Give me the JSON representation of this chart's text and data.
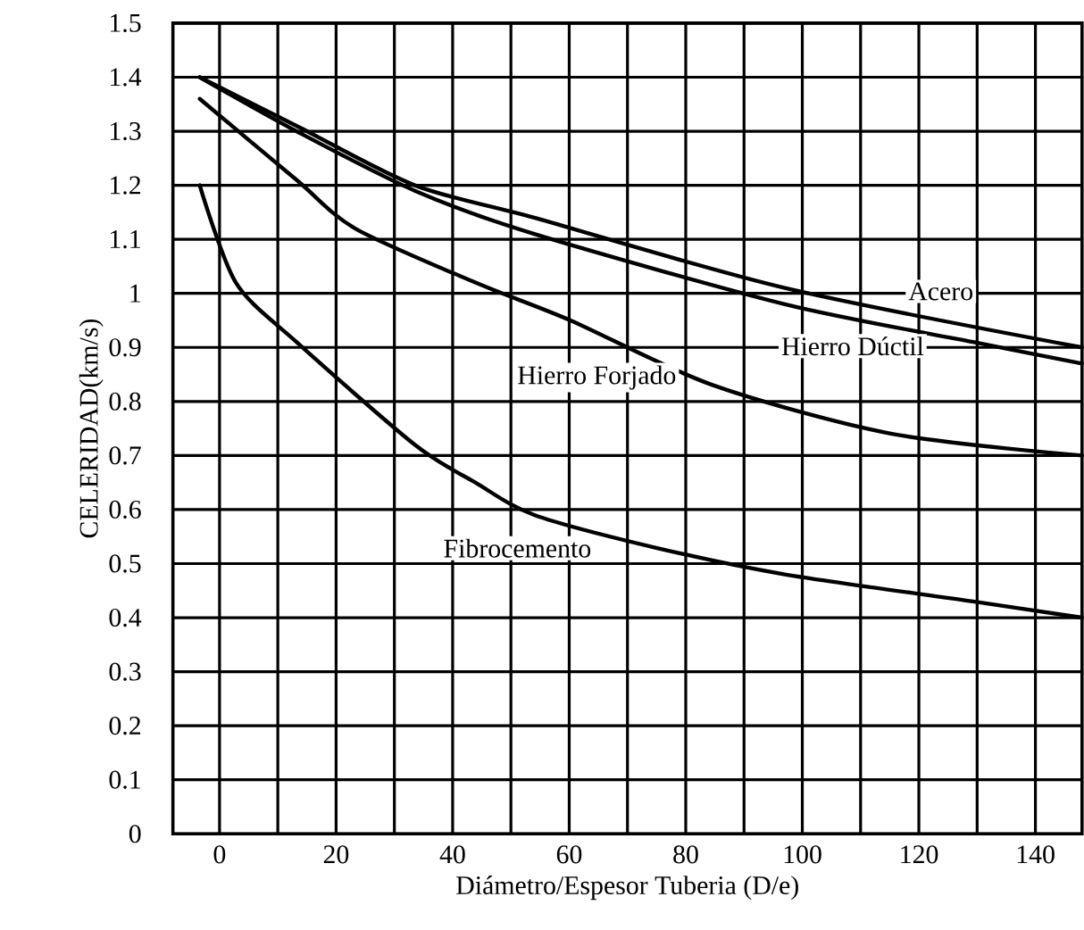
{
  "chart_data": {
    "type": "line",
    "xlabel": "Diámetro/Espesor Tuberia (D/e)",
    "ylabel": "CELERIDAD(km/s)",
    "xlim": [
      -8,
      148
    ],
    "ylim": [
      0,
      1.5
    ],
    "xticks": [
      0,
      {
        "value": 10,
        "label": null
      },
      20,
      {
        "value": 30,
        "label": null
      },
      40,
      {
        "value": 50,
        "label": null
      },
      60,
      {
        "value": 70,
        "label": null
      },
      80,
      {
        "value": 90,
        "label": null
      },
      100,
      {
        "value": 110,
        "label": null
      },
      120,
      {
        "value": 130,
        "label": null
      },
      140
    ],
    "yticks": [
      0,
      0.1,
      0.2,
      0.3,
      0.4,
      0.5,
      0.6,
      0.7,
      0.8,
      0.9,
      1,
      1.1,
      1.2,
      1.3,
      1.4,
      1.5
    ],
    "grid": true,
    "marker": "none",
    "line_style": "solid",
    "series": [
      {
        "name": "Acero",
        "color": "#000000",
        "x": [
          -3.4,
          13.2,
          33.5,
          54.0,
          97.0,
          148
        ],
        "values": [
          1.4,
          1.31,
          1.2,
          1.14,
          1.01,
          0.9
        ]
      },
      {
        "name": "Hierro Dúctil",
        "color": "#000000",
        "x": [
          -3.4,
          13.2,
          33.5,
          54.0,
          97.0,
          129.3,
          148
        ],
        "values": [
          1.4,
          1.3,
          1.19,
          1.11,
          0.98,
          0.91,
          0.87
        ]
      },
      {
        "name": "Hierro Forjado",
        "color": "#000000",
        "x": [
          -3.4,
          13.2,
          23.3,
          43.9,
          60.2,
          84.7,
          115.4,
          148
        ],
        "values": [
          1.36,
          1.21,
          1.12,
          1.02,
          0.95,
          0.83,
          0.74,
          0.7
        ]
      },
      {
        "name": "Fibrocemento",
        "color": "#000000",
        "x": [
          -3.4,
          2.8,
          13.2,
          33.5,
          43.9,
          54.0,
          74.6,
          97.0,
          129.3,
          148
        ],
        "values": [
          1.2,
          1.02,
          0.91,
          0.72,
          0.65,
          0.59,
          0.53,
          0.48,
          0.43,
          0.4
        ]
      }
    ]
  }
}
